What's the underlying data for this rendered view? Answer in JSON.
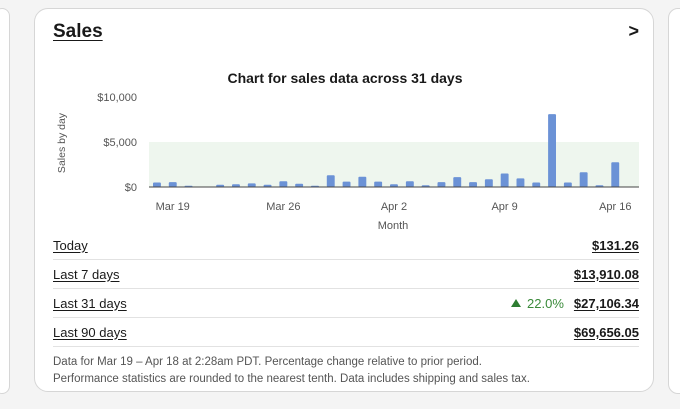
{
  "card": {
    "title": "Sales",
    "chevron": ">"
  },
  "colors": {
    "bar": "#6b92d6",
    "band": "#eef6ee",
    "positive": "#3a8a3a"
  },
  "chart_data": {
    "type": "bar",
    "title": "Chart for sales data across 31 days",
    "xlabel": "Month",
    "ylabel": "Sales by day",
    "y_ticks": [
      {
        "value": 10000,
        "label": "$10,000"
      },
      {
        "value": 5000,
        "label": "$5,000"
      },
      {
        "value": 0,
        "label": "$0"
      }
    ],
    "ylim": [
      0,
      10000
    ],
    "x_ticks": [
      {
        "index": 1,
        "label": "Mar 19"
      },
      {
        "index": 8,
        "label": "Mar 26"
      },
      {
        "index": 15,
        "label": "Apr 2"
      },
      {
        "index": 22,
        "label": "Apr 9"
      },
      {
        "index": 29,
        "label": "Apr 16"
      }
    ],
    "categories": [
      "Mar 18",
      "Mar 19",
      "Mar 20",
      "Mar 21",
      "Mar 22",
      "Mar 23",
      "Mar 24",
      "Mar 25",
      "Mar 26",
      "Mar 27",
      "Mar 28",
      "Mar 29",
      "Mar 30",
      "Mar 31",
      "Apr 1",
      "Apr 2",
      "Apr 3",
      "Apr 4",
      "Apr 5",
      "Apr 6",
      "Apr 7",
      "Apr 8",
      "Apr 9",
      "Apr 10",
      "Apr 11",
      "Apr 12",
      "Apr 13",
      "Apr 14",
      "Apr 15",
      "Apr 16",
      "Apr 17"
    ],
    "values": [
      500,
      550,
      150,
      0,
      250,
      300,
      400,
      250,
      650,
      350,
      150,
      1300,
      600,
      1150,
      600,
      300,
      650,
      200,
      550,
      1100,
      550,
      850,
      1500,
      950,
      500,
      8100,
      500,
      1650,
      200,
      2750,
      0
    ],
    "band": [
      0,
      5000
    ],
    "grid": false
  },
  "stats": [
    {
      "label": "Today",
      "value": "$131.26",
      "change": ""
    },
    {
      "label": "Last 7 days",
      "value": "$13,910.08",
      "change": ""
    },
    {
      "label": "Last 31 days",
      "value": "$27,106.34",
      "change": "22.0%"
    },
    {
      "label": "Last 90 days",
      "value": "$69,656.05",
      "change": ""
    }
  ],
  "footnote": {
    "line1": "Data for Mar 19 – Apr 18 at 2:28am PDT. Percentage change relative to prior period.",
    "line2": "Performance statistics are rounded to the nearest tenth. Data includes shipping and sales tax."
  }
}
